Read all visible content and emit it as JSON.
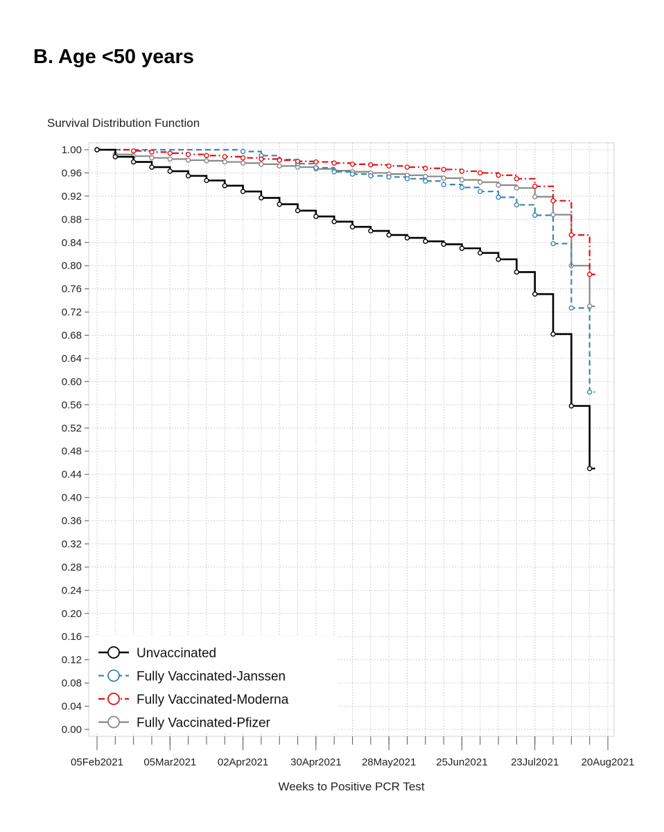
{
  "panel_title": "B. Age <50 years",
  "chart_data": {
    "type": "line",
    "title": "",
    "ylabel": "Survival Distribution Function",
    "xlabel": "Weeks to Positive PCR Test",
    "ylim": [
      0,
      1.0
    ],
    "y_ticks": [
      0.0,
      0.04,
      0.08,
      0.12,
      0.16,
      0.2,
      0.24,
      0.28,
      0.32,
      0.36,
      0.4,
      0.44,
      0.48,
      0.52,
      0.56,
      0.6,
      0.64,
      0.68,
      0.72,
      0.76,
      0.8,
      0.84,
      0.88,
      0.92,
      0.96,
      1.0
    ],
    "y_tick_labels": [
      "0.00",
      "0.04",
      "0.08",
      "0.12",
      "0.16",
      "0.20",
      "0.24",
      "0.28",
      "0.32",
      "0.36",
      "0.40",
      "0.44",
      "0.48",
      "0.52",
      "0.56",
      "0.60",
      "0.64",
      "0.68",
      "0.72",
      "0.76",
      "0.80",
      "0.84",
      "0.88",
      "0.92",
      "0.96",
      "1.00"
    ],
    "x_unit": "weeks",
    "xlim": [
      0,
      28
    ],
    "x_major_ticks": [
      0,
      4,
      8,
      12,
      16,
      20,
      24,
      28
    ],
    "x_tick_labels": [
      "05Feb2021",
      "05Mar2021",
      "02Apr2021",
      "30Apr2021",
      "28May2021",
      "25Jun2021",
      "23Jul2021",
      "20Aug2021"
    ],
    "grid": true,
    "legend_position": "bottom-left",
    "series": [
      {
        "name": "Unvaccinated",
        "color": "#000000",
        "dash": "solid",
        "x": [
          0,
          1,
          2,
          3,
          4,
          5,
          6,
          7,
          8,
          9,
          10,
          11,
          12,
          13,
          14,
          15,
          16,
          17,
          18,
          19,
          20,
          21,
          22,
          23,
          24,
          25,
          26,
          27
        ],
        "y": [
          1.0,
          0.988,
          0.979,
          0.97,
          0.963,
          0.955,
          0.947,
          0.938,
          0.928,
          0.917,
          0.906,
          0.895,
          0.885,
          0.876,
          0.867,
          0.86,
          0.853,
          0.848,
          0.842,
          0.837,
          0.83,
          0.822,
          0.811,
          0.789,
          0.751,
          0.682,
          0.558,
          0.45
        ]
      },
      {
        "name": "Fully Vaccinated-Janssen",
        "color": "#3a86b0",
        "dash": "dashed",
        "x": [
          0,
          8,
          9,
          10,
          11,
          12,
          13,
          14,
          15,
          16,
          17,
          18,
          19,
          20,
          21,
          22,
          23,
          24,
          25,
          26,
          27
        ],
        "y": [
          1.0,
          0.997,
          0.99,
          0.983,
          0.976,
          0.969,
          0.962,
          0.958,
          0.955,
          0.953,
          0.95,
          0.946,
          0.94,
          0.935,
          0.928,
          0.918,
          0.905,
          0.887,
          0.838,
          0.727,
          0.582
        ]
      },
      {
        "name": "Fully Vaccinated-Moderna",
        "color": "#e01010",
        "dash": "dashdot",
        "x": [
          0,
          2,
          3,
          4,
          5,
          6,
          7,
          8,
          9,
          10,
          11,
          12,
          13,
          14,
          15,
          16,
          17,
          18,
          19,
          20,
          21,
          22,
          23,
          24,
          25,
          26,
          27
        ],
        "y": [
          1.0,
          0.998,
          0.996,
          0.994,
          0.992,
          0.99,
          0.988,
          0.986,
          0.984,
          0.982,
          0.98,
          0.979,
          0.977,
          0.975,
          0.974,
          0.972,
          0.97,
          0.968,
          0.966,
          0.963,
          0.96,
          0.956,
          0.95,
          0.937,
          0.912,
          0.853,
          0.785
        ]
      },
      {
        "name": "Fully Vaccinated-Pfizer",
        "color": "#888888",
        "dash": "solid",
        "x": [
          0,
          1,
          2,
          3,
          4,
          5,
          6,
          7,
          8,
          9,
          10,
          11,
          12,
          13,
          14,
          15,
          16,
          17,
          18,
          19,
          20,
          21,
          22,
          23,
          24,
          25,
          26,
          27
        ],
        "y": [
          1.0,
          0.992,
          0.989,
          0.986,
          0.984,
          0.982,
          0.981,
          0.979,
          0.977,
          0.975,
          0.972,
          0.97,
          0.967,
          0.964,
          0.962,
          0.96,
          0.958,
          0.956,
          0.954,
          0.951,
          0.948,
          0.944,
          0.939,
          0.934,
          0.919,
          0.888,
          0.8,
          0.73
        ]
      }
    ]
  }
}
